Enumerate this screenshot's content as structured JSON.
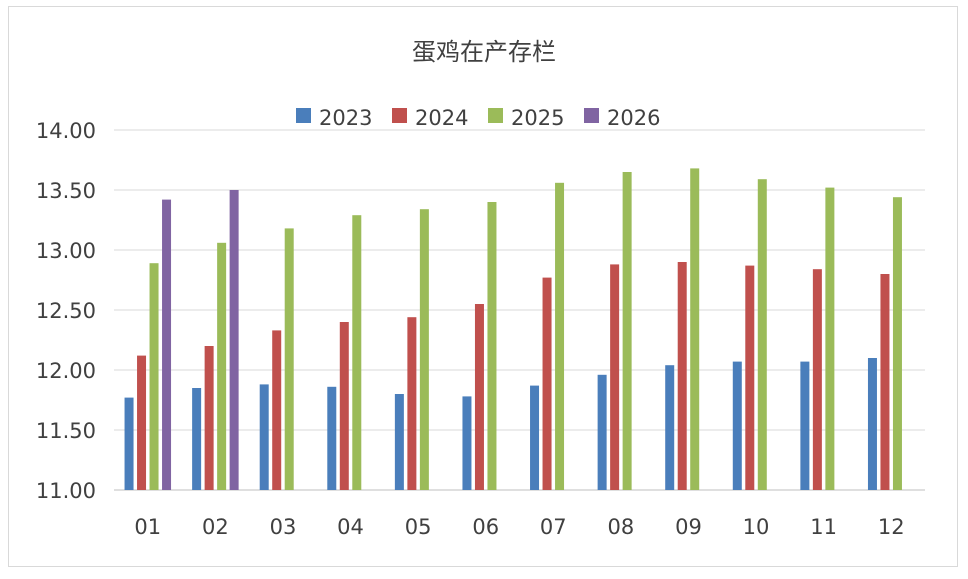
{
  "chart_data": {
    "type": "bar",
    "title": "蛋鸡在产存栏",
    "xlabel": "",
    "ylabel": "",
    "categories": [
      "01",
      "02",
      "03",
      "04",
      "05",
      "06",
      "07",
      "08",
      "09",
      "10",
      "11",
      "12"
    ],
    "ylim": [
      11.0,
      14.0
    ],
    "y_ticks": [
      "11.00",
      "11.50",
      "12.00",
      "12.50",
      "13.00",
      "13.50",
      "14.00"
    ],
    "grid": true,
    "legend_position": "top",
    "series": [
      {
        "name": "2023",
        "color": "#4a7ebb",
        "values": [
          11.77,
          11.85,
          11.88,
          11.86,
          11.8,
          11.78,
          11.87,
          11.96,
          12.04,
          12.07,
          12.07,
          12.1
        ]
      },
      {
        "name": "2024",
        "color": "#c0504d",
        "values": [
          12.12,
          12.2,
          12.33,
          12.4,
          12.44,
          12.55,
          12.77,
          12.88,
          12.9,
          12.87,
          12.84,
          12.8
        ]
      },
      {
        "name": "2025",
        "color": "#9bbb59",
        "values": [
          12.89,
          13.06,
          13.18,
          13.29,
          13.34,
          13.4,
          13.56,
          13.65,
          13.68,
          13.59,
          13.52,
          13.44
        ]
      },
      {
        "name": "2026",
        "color": "#8064a2",
        "values": [
          13.42,
          13.5,
          null,
          null,
          null,
          null,
          null,
          null,
          null,
          null,
          null,
          null
        ]
      }
    ]
  }
}
